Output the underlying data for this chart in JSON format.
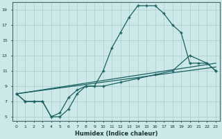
{
  "xlabel": "Humidex (Indice chaleur)",
  "bg_color": "#cce8e8",
  "grid_color": "#b0d0d0",
  "line_color": "#1a6060",
  "xmin": 0,
  "xmax": 23,
  "ymin": 5,
  "ymax": 19,
  "line1_x": [
    0,
    1,
    2,
    3,
    4,
    5,
    6,
    7,
    8,
    9,
    10,
    11,
    12,
    13,
    14,
    15,
    16,
    17,
    18,
    19,
    20,
    21,
    22,
    23
  ],
  "line1_y": [
    8,
    7,
    7,
    7,
    5,
    5,
    6,
    8,
    9,
    9,
    11,
    14,
    16,
    18,
    19.5,
    19.5,
    19.5,
    18.5,
    17,
    16,
    12,
    12,
    12,
    11
  ],
  "line2_x": [
    0,
    1,
    2,
    3,
    4,
    5,
    6,
    7,
    8,
    10,
    12,
    14,
    16,
    18,
    20,
    22,
    23
  ],
  "line2_y": [
    8,
    7,
    7,
    7,
    5,
    5.5,
    7.5,
    8.5,
    9,
    9,
    9.5,
    10,
    10.5,
    11,
    13,
    12,
    11
  ],
  "line3_x": [
    0,
    23
  ],
  "line3_y": [
    8,
    12
  ],
  "line4_x": [
    0,
    23
  ],
  "line4_y": [
    8,
    11.5
  ]
}
